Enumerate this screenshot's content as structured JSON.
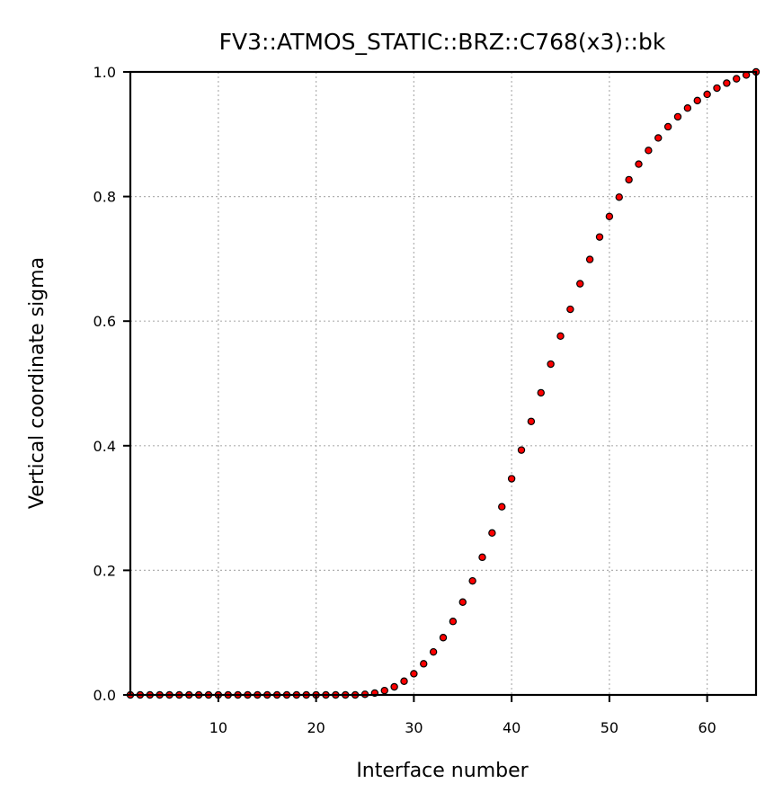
{
  "chart_data": {
    "type": "scatter",
    "title": "FV3::ATMOS_STATIC::BRZ::C768(x3)::bk",
    "xlabel": "Interface number",
    "ylabel": "Vertical coordinate sigma",
    "xlim": [
      1,
      65
    ],
    "ylim": [
      0,
      1
    ],
    "xticks": [
      10,
      20,
      30,
      40,
      50,
      60
    ],
    "yticks": [
      0.0,
      0.2,
      0.4,
      0.6,
      0.8,
      1.0
    ],
    "xtick_labels": [
      "10",
      "20",
      "30",
      "40",
      "50",
      "60"
    ],
    "ytick_labels": [
      "0.0",
      "0.2",
      "0.4",
      "0.6",
      "0.8",
      "1.0"
    ],
    "grid": true,
    "marker_color": "#ff0000",
    "marker_edge_color": "#000000",
    "points": [
      {
        "x": 1,
        "y": 0.0
      },
      {
        "x": 2,
        "y": 0.0
      },
      {
        "x": 3,
        "y": 0.0
      },
      {
        "x": 4,
        "y": 0.0
      },
      {
        "x": 5,
        "y": 0.0
      },
      {
        "x": 6,
        "y": 0.0
      },
      {
        "x": 7,
        "y": 0.0
      },
      {
        "x": 8,
        "y": 0.0
      },
      {
        "x": 9,
        "y": 0.0
      },
      {
        "x": 10,
        "y": 0.0
      },
      {
        "x": 11,
        "y": 0.0
      },
      {
        "x": 12,
        "y": 0.0
      },
      {
        "x": 13,
        "y": 0.0
      },
      {
        "x": 14,
        "y": 0.0
      },
      {
        "x": 15,
        "y": 0.0
      },
      {
        "x": 16,
        "y": 0.0
      },
      {
        "x": 17,
        "y": 0.0
      },
      {
        "x": 18,
        "y": 0.0
      },
      {
        "x": 19,
        "y": 0.0
      },
      {
        "x": 20,
        "y": 0.0
      },
      {
        "x": 21,
        "y": 0.0
      },
      {
        "x": 22,
        "y": 0.0
      },
      {
        "x": 23,
        "y": 0.0
      },
      {
        "x": 24,
        "y": 0.0
      },
      {
        "x": 25,
        "y": 0.001
      },
      {
        "x": 26,
        "y": 0.003
      },
      {
        "x": 27,
        "y": 0.007
      },
      {
        "x": 28,
        "y": 0.013
      },
      {
        "x": 29,
        "y": 0.022
      },
      {
        "x": 30,
        "y": 0.034
      },
      {
        "x": 31,
        "y": 0.05
      },
      {
        "x": 32,
        "y": 0.069
      },
      {
        "x": 33,
        "y": 0.092
      },
      {
        "x": 34,
        "y": 0.118
      },
      {
        "x": 35,
        "y": 0.149
      },
      {
        "x": 36,
        "y": 0.183
      },
      {
        "x": 37,
        "y": 0.221
      },
      {
        "x": 38,
        "y": 0.26
      },
      {
        "x": 39,
        "y": 0.302
      },
      {
        "x": 40,
        "y": 0.347
      },
      {
        "x": 41,
        "y": 0.393
      },
      {
        "x": 42,
        "y": 0.439
      },
      {
        "x": 43,
        "y": 0.485
      },
      {
        "x": 44,
        "y": 0.531
      },
      {
        "x": 45,
        "y": 0.576
      },
      {
        "x": 46,
        "y": 0.619
      },
      {
        "x": 47,
        "y": 0.66
      },
      {
        "x": 48,
        "y": 0.699
      },
      {
        "x": 49,
        "y": 0.735
      },
      {
        "x": 50,
        "y": 0.768
      },
      {
        "x": 51,
        "y": 0.799
      },
      {
        "x": 52,
        "y": 0.827
      },
      {
        "x": 53,
        "y": 0.852
      },
      {
        "x": 54,
        "y": 0.874
      },
      {
        "x": 55,
        "y": 0.894
      },
      {
        "x": 56,
        "y": 0.912
      },
      {
        "x": 57,
        "y": 0.928
      },
      {
        "x": 58,
        "y": 0.942
      },
      {
        "x": 59,
        "y": 0.954
      },
      {
        "x": 60,
        "y": 0.964
      },
      {
        "x": 61,
        "y": 0.974
      },
      {
        "x": 62,
        "y": 0.982
      },
      {
        "x": 63,
        "y": 0.989
      },
      {
        "x": 64,
        "y": 0.995
      },
      {
        "x": 65,
        "y": 1.0
      }
    ]
  }
}
